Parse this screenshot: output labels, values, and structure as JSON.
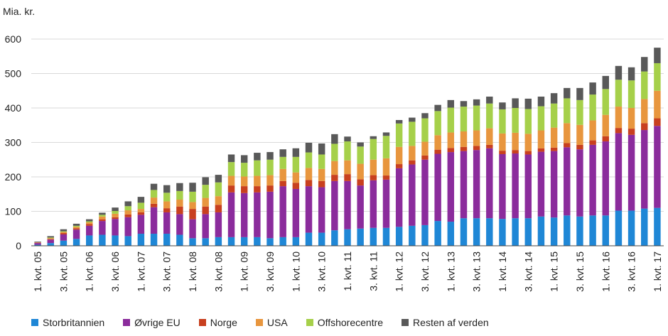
{
  "chart_data": {
    "type": "bar",
    "stacked": true,
    "ylabel": "Mia. kr.",
    "ylim": [
      0,
      600
    ],
    "yticks": [
      0,
      100,
      200,
      300,
      400,
      500,
      600
    ],
    "categories": [
      "1. kvt. 05",
      "2. kvt. 05",
      "3. kvt. 05",
      "4. kvt. 05",
      "1. kvt. 06",
      "2. kvt. 06",
      "3. kvt. 06",
      "4. kvt. 06",
      "1. kvt. 07",
      "2. kvt. 07",
      "3. kvt. 07",
      "4. kvt. 07",
      "1. kvt. 08",
      "2. kvt. 08",
      "3. kvt. 08",
      "4. kvt. 08",
      "1. kvt. 09",
      "2. kvt. 09",
      "3. kvt. 09",
      "4. kvt. 09",
      "1. kvt. 10",
      "2. kvt. 10",
      "3. kvt. 10",
      "4. kvt. 10",
      "1. kvt. 11",
      "2. kvt. 11",
      "3. kvt. 11",
      "4. kvt. 11",
      "1. kvt. 12",
      "2. kvt. 12",
      "3. kvt. 12",
      "4. kvt. 12",
      "1. kvt. 13",
      "2. kvt. 13",
      "3. kvt. 13",
      "4. kvt. 13",
      "1. kvt. 14",
      "2. kvt. 14",
      "3. kvt. 14",
      "4. kvt. 14",
      "1. kvt. 15",
      "2. kvt. 15",
      "3. kvt. 15",
      "4. kvt. 15",
      "1. kvt. 16",
      "2. kvt. 16",
      "3. kvt. 16",
      "4. kvt. 16",
      "1. kvt. 17"
    ],
    "xtick_labels": [
      "1. kvt. 05",
      "3. kvt. 05",
      "1. kvt. 06",
      "3. kvt. 06",
      "1. kvt. 07",
      "3. kvt. 07",
      "1. kvt. 08",
      "3. kvt. 08",
      "1. kvt. 09",
      "3. kvt. 09",
      "1. kvt. 10",
      "3. kvt. 10",
      "1. kvt. 11",
      "3. kvt. 11",
      "1. kvt. 12",
      "3. kvt. 12",
      "1. kvt. 13",
      "3. kvt. 13",
      "1. kvt. 14",
      "3. kvt. 14",
      "1. kvt. 15",
      "3. kvt. 15",
      "1. kvt. 16",
      "3. kvt. 16",
      "1. kvt. 17"
    ],
    "series": [
      {
        "name": "Storbritannien",
        "color": "#1f87d6",
        "values": [
          3,
          8,
          15,
          20,
          30,
          32,
          30,
          28,
          35,
          35,
          35,
          32,
          22,
          22,
          25,
          25,
          25,
          25,
          22,
          25,
          25,
          38,
          38,
          45,
          48,
          50,
          52,
          52,
          55,
          58,
          60,
          72,
          70,
          80,
          80,
          80,
          78,
          80,
          80,
          85,
          82,
          88,
          85,
          88,
          88,
          102,
          102,
          108,
          110
        ]
      },
      {
        "name": "Øvrige EU",
        "color": "#8b2c9c",
        "values": [
          5,
          10,
          18,
          27,
          28,
          40,
          48,
          55,
          55,
          77,
          62,
          60,
          55,
          70,
          72,
          130,
          128,
          130,
          135,
          148,
          140,
          135,
          132,
          143,
          140,
          125,
          138,
          140,
          170,
          178,
          190,
          195,
          202,
          195,
          198,
          203,
          188,
          188,
          185,
          188,
          193,
          198,
          195,
          205,
          215,
          225,
          220,
          228,
          238
        ]
      },
      {
        "name": "Norge",
        "color": "#c8401f",
        "values": [
          1,
          2,
          4,
          4,
          5,
          5,
          5,
          8,
          7,
          10,
          12,
          22,
          30,
          22,
          22,
          20,
          20,
          18,
          18,
          15,
          18,
          18,
          18,
          18,
          20,
          18,
          15,
          12,
          12,
          12,
          12,
          12,
          12,
          12,
          12,
          10,
          10,
          10,
          10,
          10,
          10,
          12,
          13,
          13,
          15,
          15,
          18,
          20,
          22
        ]
      },
      {
        "name": "USA",
        "color": "#e8963e",
        "values": [
          1,
          2,
          3,
          4,
          5,
          8,
          10,
          12,
          10,
          18,
          20,
          20,
          20,
          25,
          25,
          28,
          28,
          30,
          30,
          35,
          30,
          35,
          35,
          40,
          40,
          45,
          45,
          50,
          50,
          42,
          40,
          42,
          45,
          45,
          45,
          48,
          50,
          50,
          50,
          52,
          58,
          58,
          58,
          58,
          62,
          62,
          60,
          70,
          80
        ]
      },
      {
        "name": "Offshorecentre",
        "color": "#a6d04a",
        "values": [
          0,
          2,
          2,
          3,
          3,
          5,
          8,
          12,
          18,
          22,
          25,
          25,
          30,
          38,
          40,
          40,
          40,
          45,
          45,
          35,
          45,
          45,
          42,
          50,
          55,
          50,
          60,
          65,
          68,
          70,
          68,
          70,
          72,
          72,
          72,
          72,
          70,
          72,
          72,
          70,
          70,
          72,
          72,
          75,
          75,
          78,
          80,
          80,
          80
        ]
      },
      {
        "name": "Resten af verden",
        "color": "#595959",
        "values": [
          2,
          4,
          6,
          6,
          6,
          6,
          10,
          14,
          17,
          18,
          22,
          23,
          26,
          22,
          22,
          22,
          22,
          22,
          22,
          22,
          25,
          28,
          32,
          28,
          14,
          12,
          8,
          10,
          10,
          12,
          15,
          18,
          22,
          16,
          18,
          20,
          20,
          28,
          30,
          28,
          30,
          30,
          35,
          35,
          38,
          40,
          38,
          42,
          45
        ]
      }
    ]
  }
}
